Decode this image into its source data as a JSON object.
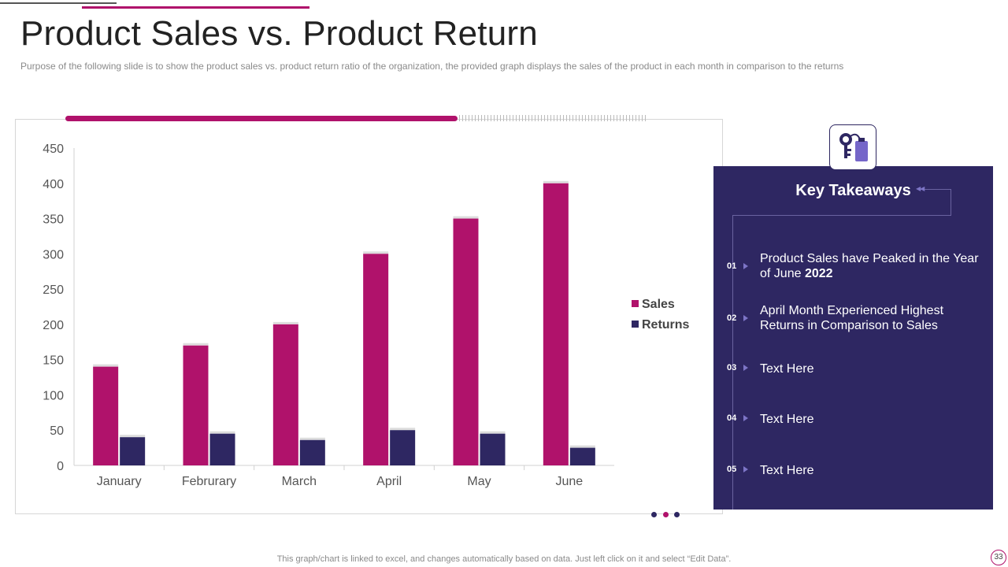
{
  "slide": {
    "title": "Product Sales vs. Product Return",
    "subtitle": "Purpose of the following slide is to show the product sales vs. product return ratio of the organization, the provided graph displays the sales of the product in each month in comparison to the returns",
    "footer": "This graph/chart is linked to excel, and changes automatically based on data. Just left click on it and select “Edit Data”.",
    "page_number": "33"
  },
  "colors": {
    "accent": "#b0126b",
    "navy": "#2e2762",
    "panel": "#2e2762"
  },
  "chart_data": {
    "type": "bar",
    "title": "",
    "xlabel": "",
    "ylabel": "",
    "categories": [
      "January",
      "Februrary",
      "March",
      "April",
      "May",
      "June"
    ],
    "series": [
      {
        "name": "Sales",
        "color": "#b0126b",
        "values": [
          140,
          170,
          200,
          300,
          350,
          400
        ]
      },
      {
        "name": "Returns",
        "color": "#2e2762",
        "values": [
          40,
          45,
          36,
          50,
          45,
          25
        ]
      }
    ],
    "ylim": [
      0,
      450
    ],
    "yticks": [
      0,
      50,
      100,
      150,
      200,
      250,
      300,
      350,
      400,
      450
    ],
    "grid": false,
    "legend": "right"
  },
  "takeaways": {
    "icon": "keys-bag-icon",
    "title": "Key Takeaways",
    "items": [
      {
        "num": "01",
        "text": "Product Sales have Peaked in the Year of June",
        "bold": "2022"
      },
      {
        "num": "02",
        "text": "April Month Experienced Highest Returns in Comparison to Sales"
      },
      {
        "num": "03",
        "text": "Text Here"
      },
      {
        "num": "04",
        "text": "Text Here"
      },
      {
        "num": "05",
        "text": "Text Here"
      }
    ]
  }
}
